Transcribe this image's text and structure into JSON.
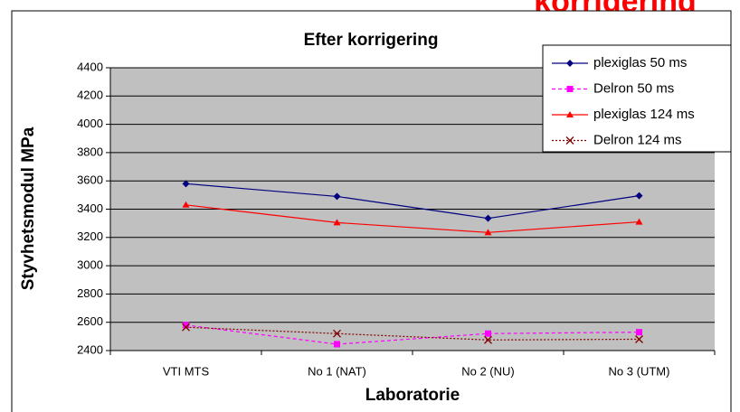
{
  "chart_data": {
    "type": "line",
    "banner": "korrigering",
    "title": "Efter korrigering",
    "xlabel": "Laboratorie",
    "ylabel": "Styvhetsmodul MPa",
    "categories": [
      "VTI MTS",
      "No 1 (NAT)",
      "No 2 (NU)",
      "No 3 (UTM)"
    ],
    "ylim": [
      2400,
      4400
    ],
    "yticks": [
      2400,
      2600,
      2800,
      3000,
      3200,
      3400,
      3600,
      3800,
      4000,
      4200,
      4400
    ],
    "grid": true,
    "legend": "top-right",
    "series": [
      {
        "name": "plexiglas 50 ms",
        "color": "#000080",
        "marker": "diamond",
        "dash": "solid",
        "values": [
          3580,
          3490,
          3335,
          3495
        ]
      },
      {
        "name": "Delron 50 ms",
        "color": "#ff00ff",
        "marker": "square",
        "dash": "dashed",
        "values": [
          2580,
          2445,
          2520,
          2530
        ]
      },
      {
        "name": "plexiglas 124 ms",
        "color": "#ff0000",
        "marker": "triangle",
        "dash": "solid",
        "values": [
          3430,
          3305,
          3235,
          3310
        ]
      },
      {
        "name": "Delron 124 ms",
        "color": "#800000",
        "marker": "x",
        "dash": "dotted",
        "values": [
          2565,
          2520,
          2475,
          2480
        ]
      }
    ]
  }
}
